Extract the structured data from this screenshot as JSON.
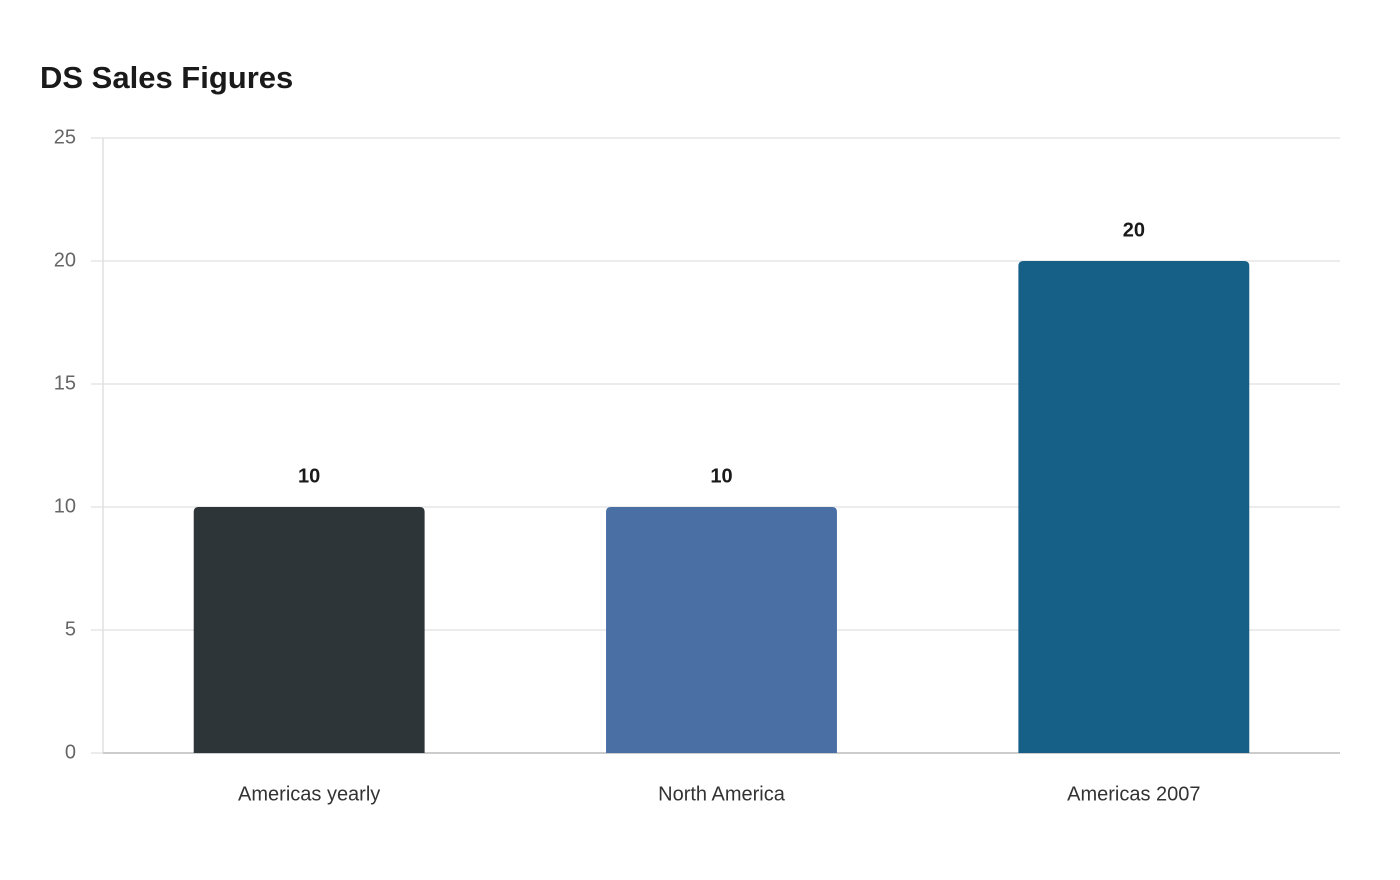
{
  "chart_data": {
    "type": "bar",
    "title": "DS Sales Figures",
    "categories": [
      "Americas yearly",
      "North America",
      "Americas 2007"
    ],
    "values": [
      10,
      10,
      20
    ],
    "colors": [
      "#2e3538",
      "#4a6fa5",
      "#166088"
    ],
    "ylim": [
      0,
      25
    ],
    "yticks": [
      0,
      5,
      10,
      15,
      20,
      25
    ],
    "grid": true
  }
}
